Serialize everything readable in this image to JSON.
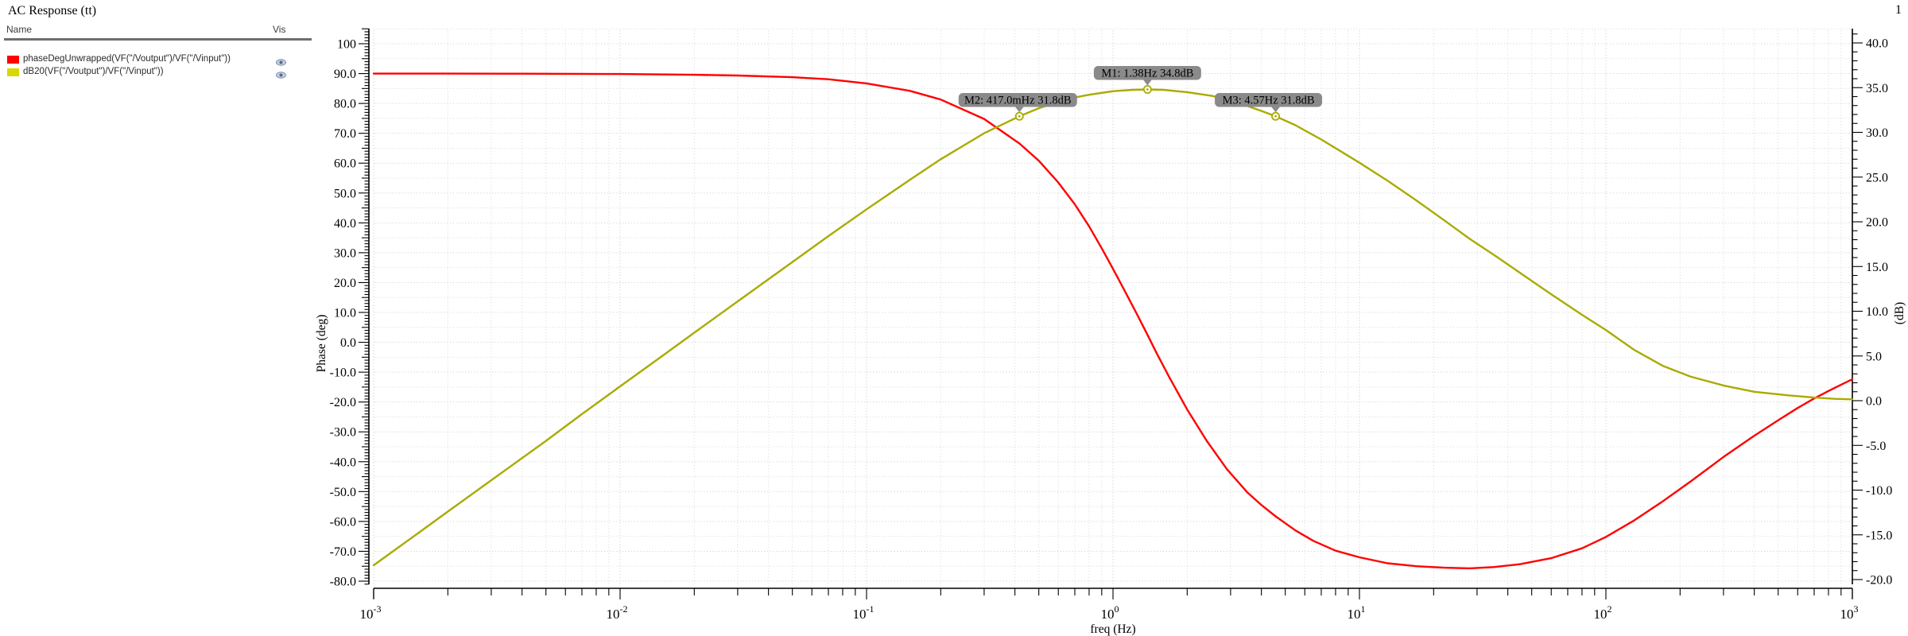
{
  "header": {
    "title": "AC Response (tt)"
  },
  "page_indicator": "1",
  "panel": {
    "columns": [
      "Name",
      "Vis"
    ],
    "rows": [
      {
        "id": "phase",
        "swatch_color": "#ff0000",
        "label": "phaseDegUnwrapped(VF(\"/Voutput\")/VF(\"/Vinput\"))",
        "vis_icon": "eye-icon"
      },
      {
        "id": "db20",
        "swatch_color": "#d8d800",
        "label": "dB20(VF(\"/Voutput\")/VF(\"/Vinput\"))",
        "vis_icon": "eye-icon"
      }
    ]
  },
  "chart_data": {
    "type": "line",
    "title": "AC Response (tt)",
    "xlabel": "freq (Hz)",
    "x_axis": {
      "scale": "log",
      "min": 0.001,
      "max": 1000,
      "tick_base": "10",
      "decade_exponents": [
        "-3",
        "-2",
        "-1",
        "0",
        "1",
        "2",
        "3"
      ],
      "grid": "dotted, minor lines at 2-9 of each decade"
    },
    "y_left": {
      "label": "Phase (deg)",
      "min": -80,
      "max": 100,
      "major_step": 10,
      "ticks": [
        [
          100,
          "100"
        ],
        [
          90,
          "90.0"
        ],
        [
          80,
          "80.0"
        ],
        [
          70,
          "70.0"
        ],
        [
          60,
          "60.0"
        ],
        [
          50,
          "50.0"
        ],
        [
          40,
          "40.0"
        ],
        [
          30,
          "30.0"
        ],
        [
          20,
          "20.0"
        ],
        [
          10,
          "10.0"
        ],
        [
          0,
          "0.0"
        ],
        [
          -10,
          "-10.0"
        ],
        [
          -20,
          "-20.0"
        ],
        [
          -30,
          "-30.0"
        ],
        [
          -40,
          "-40.0"
        ],
        [
          -50,
          "-50.0"
        ],
        [
          -60,
          "-60.0"
        ],
        [
          -70,
          "-70.0"
        ],
        [
          -80,
          "-80.0"
        ]
      ],
      "grid_minor_deg": 5
    },
    "y_right": {
      "label": "(dB)",
      "min": -20,
      "max": 40,
      "major_step": 5,
      "ticks": [
        [
          40,
          "40.0"
        ],
        [
          35,
          "35.0"
        ],
        [
          30,
          "30.0"
        ],
        [
          25,
          "25.0"
        ],
        [
          20,
          "20.0"
        ],
        [
          15,
          "15.0"
        ],
        [
          10,
          "10.0"
        ],
        [
          5,
          "5.0"
        ],
        [
          0,
          "0.0"
        ],
        [
          -5,
          "-5.0"
        ],
        [
          -10,
          "-10.0"
        ],
        [
          -15,
          "-15.0"
        ],
        [
          -20,
          "-20.0"
        ]
      ]
    },
    "series": [
      {
        "id": "phase",
        "name": "phaseDegUnwrapped(VF(\"/Voutput\")/VF(\"/Vinput\"))",
        "axis": "left",
        "color": "#ff0000",
        "unit": "deg",
        "points": [
          [
            0.001,
            90
          ],
          [
            0.002,
            90
          ],
          [
            0.004,
            89.95
          ],
          [
            0.007,
            89.9
          ],
          [
            0.01,
            89.85
          ],
          [
            0.02,
            89.6
          ],
          [
            0.03,
            89.35
          ],
          [
            0.05,
            88.8
          ],
          [
            0.07,
            88.1
          ],
          [
            0.1,
            86.7
          ],
          [
            0.15,
            84.2
          ],
          [
            0.2,
            81.3
          ],
          [
            0.3,
            74.8
          ],
          [
            0.417,
            66.6
          ],
          [
            0.5,
            60.8
          ],
          [
            0.6,
            53.5
          ],
          [
            0.7,
            46.2
          ],
          [
            0.8,
            38.8
          ],
          [
            0.9,
            31.5
          ],
          [
            1.0,
            24.6
          ],
          [
            1.1,
            18.2
          ],
          [
            1.25,
            9.5
          ],
          [
            1.38,
            2.5
          ],
          [
            1.5,
            -3.5
          ],
          [
            1.7,
            -12.0
          ],
          [
            2.0,
            -22.5
          ],
          [
            2.4,
            -33.0
          ],
          [
            2.9,
            -42.5
          ],
          [
            3.5,
            -50.2
          ],
          [
            4.0,
            -54.5
          ],
          [
            4.57,
            -58.3
          ],
          [
            5.5,
            -63.0
          ],
          [
            6.5,
            -66.5
          ],
          [
            8.0,
            -69.8
          ],
          [
            10,
            -72.0
          ],
          [
            13,
            -74.0
          ],
          [
            17,
            -75.0
          ],
          [
            22,
            -75.5
          ],
          [
            28,
            -75.7
          ],
          [
            35,
            -75.3
          ],
          [
            45,
            -74.3
          ],
          [
            60,
            -72.3
          ],
          [
            80,
            -69.0
          ],
          [
            100,
            -65.2
          ],
          [
            130,
            -59.7
          ],
          [
            170,
            -53.3
          ],
          [
            220,
            -46.7
          ],
          [
            300,
            -38.4
          ],
          [
            400,
            -31.3
          ],
          [
            500,
            -26.1
          ],
          [
            600,
            -22.0
          ],
          [
            700,
            -18.8
          ],
          [
            800,
            -16.3
          ],
          [
            900,
            -14.2
          ],
          [
            1000,
            -12.4
          ]
        ]
      },
      {
        "id": "db20",
        "name": "dB20(VF(\"/Voutput\")/VF(\"/Vinput\"))",
        "axis": "right",
        "color": "#a9ab00",
        "unit": "dB",
        "points": [
          [
            0.001,
            -18.4
          ],
          [
            0.0015,
            -14.9
          ],
          [
            0.002,
            -12.4
          ],
          [
            0.003,
            -8.9
          ],
          [
            0.005,
            -4.5
          ],
          [
            0.007,
            -1.5
          ],
          [
            0.01,
            1.6
          ],
          [
            0.015,
            5.1
          ],
          [
            0.02,
            7.6
          ],
          [
            0.03,
            11.1
          ],
          [
            0.05,
            15.5
          ],
          [
            0.07,
            18.4
          ],
          [
            0.1,
            21.4
          ],
          [
            0.15,
            24.7
          ],
          [
            0.2,
            27.0
          ],
          [
            0.3,
            29.9
          ],
          [
            0.417,
            31.8
          ],
          [
            0.5,
            32.7
          ],
          [
            0.6,
            33.4
          ],
          [
            0.7,
            33.9
          ],
          [
            0.8,
            34.2
          ],
          [
            1.0,
            34.6
          ],
          [
            1.2,
            34.76
          ],
          [
            1.38,
            34.8
          ],
          [
            1.6,
            34.76
          ],
          [
            2.0,
            34.5
          ],
          [
            2.5,
            34.1
          ],
          [
            3.0,
            33.6
          ],
          [
            4.0,
            32.4
          ],
          [
            4.57,
            31.8
          ],
          [
            5.5,
            30.8
          ],
          [
            7.0,
            29.2
          ],
          [
            8.5,
            27.8
          ],
          [
            10,
            26.6
          ],
          [
            13,
            24.6
          ],
          [
            17,
            22.4
          ],
          [
            22,
            20.2
          ],
          [
            28,
            18.1
          ],
          [
            36,
            16.1
          ],
          [
            47,
            13.9
          ],
          [
            60,
            11.9
          ],
          [
            80,
            9.6
          ],
          [
            100,
            7.9
          ],
          [
            130,
            5.7
          ],
          [
            170,
            3.9
          ],
          [
            220,
            2.7
          ],
          [
            300,
            1.7
          ],
          [
            400,
            1.0
          ],
          [
            550,
            0.6
          ],
          [
            700,
            0.35
          ],
          [
            850,
            0.2
          ],
          [
            1000,
            0.15
          ]
        ]
      }
    ],
    "markers": [
      {
        "id": "M1",
        "label": "M1: 1.38Hz 34.8dB",
        "freq": 1.38,
        "db": 34.8,
        "label_row": 0,
        "label_dx": 0
      },
      {
        "id": "M2",
        "label": "M2: 417.0mHz 31.8dB",
        "freq": 0.417,
        "db": 31.8,
        "label_row": 1,
        "label_dx": -2
      },
      {
        "id": "M3",
        "label": "M3: 4.57Hz 31.8dB",
        "freq": 4.57,
        "db": 31.8,
        "label_row": 1,
        "label_dx": -9
      }
    ],
    "marker_style": {
      "bg": "#8a8a8a",
      "text": "#ffffff",
      "ring": "#a9ab00"
    },
    "legend_position": "left-panel"
  }
}
